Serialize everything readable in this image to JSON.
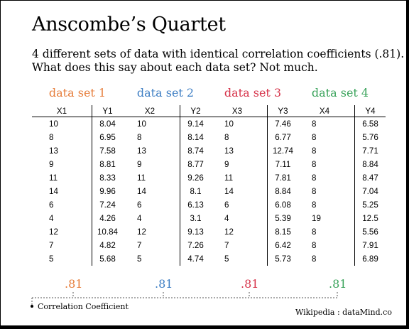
{
  "header": {
    "title": "Anscombe’s Quartet",
    "subtitle_line1": "4 different sets of data with identical correlation coefficients (.81).",
    "subtitle_line2": "What does this say about each data set?  Not much."
  },
  "colors": {
    "set1": "#e67e3c",
    "set2": "#3f7fc4",
    "set3": "#d6334a",
    "set4": "#3aa35b",
    "brace": "#555555"
  },
  "datasets": [
    {
      "label": "data set 1",
      "headers": [
        "X1",
        "Y1"
      ],
      "rows": [
        [
          "10",
          "8.04"
        ],
        [
          "8",
          "6.95"
        ],
        [
          "13",
          "7.58"
        ],
        [
          "9",
          "8.81"
        ],
        [
          "11",
          "8.33"
        ],
        [
          "14",
          "9.96"
        ],
        [
          "6",
          "7.24"
        ],
        [
          "4",
          "4.26"
        ],
        [
          "12",
          "10.84"
        ],
        [
          "7",
          "4.82"
        ],
        [
          "5",
          "5.68"
        ]
      ],
      "coefficient": ".81"
    },
    {
      "label": "data set 2",
      "headers": [
        "X2",
        "Y2"
      ],
      "rows": [
        [
          "10",
          "9.14"
        ],
        [
          "8",
          "8.14"
        ],
        [
          "13",
          "8.74"
        ],
        [
          "9",
          "8.77"
        ],
        [
          "11",
          "9.26"
        ],
        [
          "14",
          "8.1"
        ],
        [
          "6",
          "6.13"
        ],
        [
          "4",
          "3.1"
        ],
        [
          "12",
          "9.13"
        ],
        [
          "7",
          "7.26"
        ],
        [
          "5",
          "4.74"
        ]
      ],
      "coefficient": ".81"
    },
    {
      "label": "data set 3",
      "headers": [
        "X3",
        "Y3"
      ],
      "rows": [
        [
          "10",
          "7.46"
        ],
        [
          "8",
          "6.77"
        ],
        [
          "13",
          "12.74"
        ],
        [
          "9",
          "7.11"
        ],
        [
          "11",
          "7.81"
        ],
        [
          "14",
          "8.84"
        ],
        [
          "6",
          "6.08"
        ],
        [
          "4",
          "5.39"
        ],
        [
          "12",
          "8.15"
        ],
        [
          "7",
          "6.42"
        ],
        [
          "5",
          "5.73"
        ]
      ],
      "coefficient": ".81"
    },
    {
      "label": "data set 4",
      "headers": [
        "X4",
        "Y4"
      ],
      "rows": [
        [
          "8",
          "6.58"
        ],
        [
          "8",
          "5.76"
        ],
        [
          "8",
          "7.71"
        ],
        [
          "8",
          "8.84"
        ],
        [
          "8",
          "8.47"
        ],
        [
          "8",
          "7.04"
        ],
        [
          "8",
          "5.25"
        ],
        [
          "19",
          "12.5"
        ],
        [
          "8",
          "5.56"
        ],
        [
          "8",
          "7.91"
        ],
        [
          "8",
          "6.89"
        ]
      ],
      "coefficient": ".81"
    }
  ],
  "footer": {
    "legend": "Correlation Coefficient",
    "credit": "Wikipedia : dataMind.co"
  }
}
